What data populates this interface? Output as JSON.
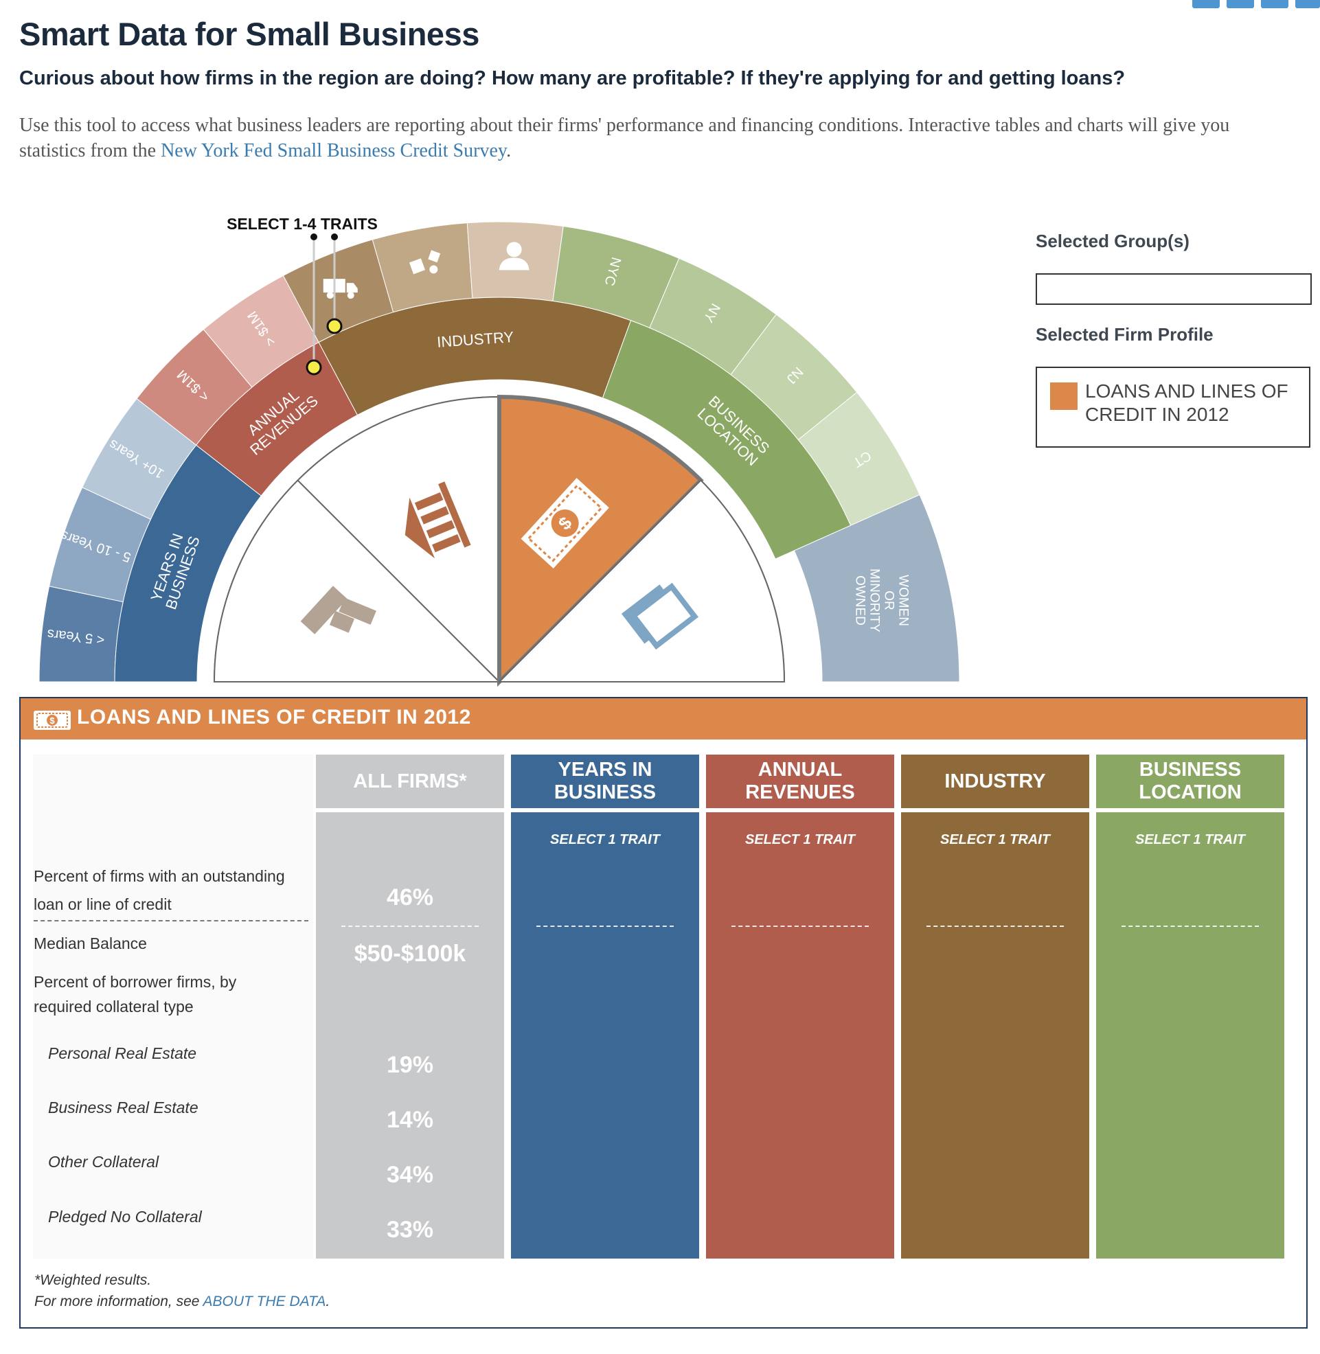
{
  "header": {
    "title": "Smart Data for Small Business",
    "subtitle": "Curious about how firms in the region are doing? How many are profitable? If they're applying for and getting loans?",
    "intro_text": "Use this tool to access what business leaders are reporting about their firms' performance and financing conditions. Interactive tables and charts will give you statistics from the ",
    "intro_link": "New York Fed Small Business Credit Survey",
    "intro_end": "."
  },
  "share_icons": [
    "facebook-icon",
    "twitter-icon",
    "email-icon",
    "print-icon"
  ],
  "wheel": {
    "instruction": "SELECT 1-4 TRAITS",
    "categories": [
      {
        "name": "YEARS IN BUSINESS",
        "color": "#3b6895",
        "traits": [
          "< 5 Years",
          "5 - 10 Years",
          "10+ Years"
        ]
      },
      {
        "name": "ANNUAL REVENUES",
        "color": "#b15d4e",
        "traits": [
          "< $1M",
          "> $1M"
        ]
      },
      {
        "name": "INDUSTRY",
        "color": "#8e6a3a",
        "traits": [
          "truck-icon",
          "cubes-icon",
          "person-icon"
        ]
      },
      {
        "name": "BUSINESS LOCATION",
        "color": "#8ba764",
        "traits": [
          "NYC",
          "NY",
          "NJ",
          "CT"
        ]
      },
      {
        "name": "WOMEN OR MINORITY OWNED",
        "color": "#9fb2c4"
      }
    ],
    "profiles": [
      {
        "icon": "bar-chart-icon",
        "selected": false
      },
      {
        "icon": "bank-icon",
        "selected": false
      },
      {
        "icon": "money-icon",
        "selected": true
      },
      {
        "icon": "documents-icon",
        "selected": false
      }
    ]
  },
  "sidebar": {
    "groups_label": "Selected Group(s)",
    "groups_value": "",
    "profile_label": "Selected Firm Profile",
    "profile_value": "LOANS AND LINES OF CREDIT IN 2012",
    "profile_color": "#dd884b"
  },
  "panel": {
    "title": "LOANS AND LINES OF CREDIT IN 2012",
    "accent": "#dd884b",
    "row_labels": [
      "Percent of firms with an outstanding loan or line of credit",
      "Median Balance",
      "Percent of borrower firms, by required collateral type",
      "Personal Real Estate",
      "Business Real Estate",
      "Other Collateral",
      "Pledged No Collateral"
    ],
    "columns": [
      {
        "header": "ALL FIRMS*",
        "color": "#c8c9cb",
        "body_color": "#c8c9cb",
        "values": [
          "46%",
          "$50-$100k",
          "19%",
          "14%",
          "34%",
          "33%"
        ]
      },
      {
        "header": "YEARS IN BUSINESS",
        "color": "#3b6895",
        "prompt": "SELECT 1 TRAIT"
      },
      {
        "header": "ANNUAL REVENUES",
        "color": "#b15d4e",
        "prompt": "SELECT 1 TRAIT"
      },
      {
        "header": "INDUSTRY",
        "color": "#8e6a3a",
        "prompt": "SELECT 1 TRAIT"
      },
      {
        "header": "BUSINESS LOCATION",
        "color": "#8ba764",
        "prompt": "SELECT 1 TRAIT"
      }
    ],
    "footnote": "*Weighted results.",
    "more_info_text": "For more information, see ",
    "more_info_link": "ABOUT THE DATA",
    "more_info_end": "."
  }
}
